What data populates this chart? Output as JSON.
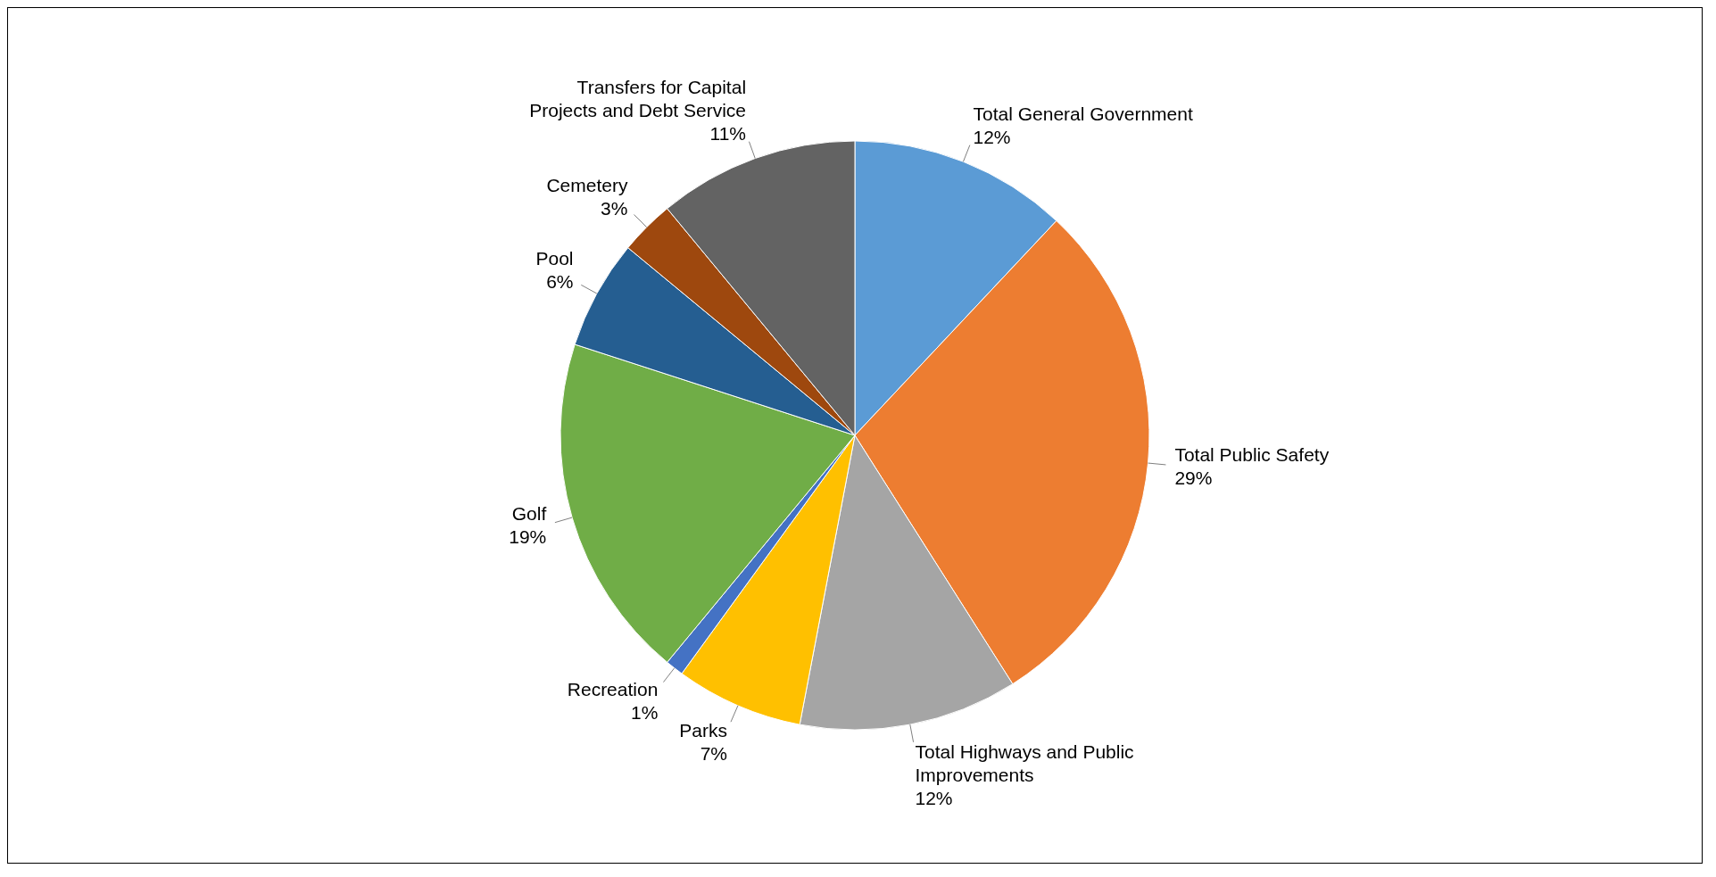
{
  "chart_data": {
    "type": "pie",
    "categories": [
      "Total General Government",
      "Total Public Safety",
      "Total Highways and Public Improvements",
      "Parks",
      "Recreation",
      "Golf",
      "Pool",
      "Cemetery",
      "Transfers for Capital Projects and Debt Service"
    ],
    "values": [
      12,
      29,
      12,
      7,
      1,
      19,
      6,
      3,
      11
    ],
    "value_labels": [
      "12%",
      "29%",
      "12%",
      "7%",
      "1%",
      "19%",
      "6%",
      "3%",
      "11%"
    ],
    "colors": [
      "#5b9bd5",
      "#ed7d31",
      "#a5a5a5",
      "#ffc000",
      "#4472c4",
      "#70ad47",
      "#255e91",
      "#9e480e",
      "#636363"
    ],
    "legend": false
  }
}
